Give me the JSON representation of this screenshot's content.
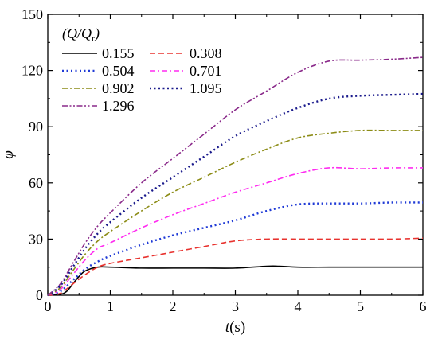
{
  "chart_data": {
    "type": "line",
    "xlabel": "t(s)",
    "ylabel": "φ",
    "xlim": [
      0,
      6
    ],
    "ylim": [
      0,
      150
    ],
    "xticks": [
      0,
      1,
      2,
      3,
      4,
      5,
      6
    ],
    "yticks": [
      0,
      30,
      60,
      90,
      120,
      150
    ],
    "grid": false,
    "legend_title": "(Q/Q_r)",
    "legend_placement": "top-left",
    "series": [
      {
        "name": "0.155",
        "color": "#000000",
        "dash": "solid",
        "x": [
          0,
          0.2,
          0.3,
          0.4,
          0.5,
          0.6,
          0.8,
          1.0,
          1.5,
          2.0,
          2.5,
          3.0,
          3.5,
          3.7,
          4.0,
          4.5,
          5.0,
          5.5,
          6.0
        ],
        "y": [
          0,
          0.5,
          2,
          6,
          10,
          13,
          15,
          15,
          14.5,
          14.5,
          14.5,
          14.5,
          15.5,
          15.5,
          15,
          15,
          15,
          15,
          15
        ]
      },
      {
        "name": "0.308",
        "color": "#e8322e",
        "dash": "dashed",
        "x": [
          0,
          0.2,
          0.4,
          0.6,
          0.8,
          1.0,
          1.5,
          2.0,
          2.5,
          3.0,
          3.5,
          4.0,
          4.5,
          5.0,
          5.5,
          6.0
        ],
        "y": [
          0,
          1,
          6,
          11,
          15,
          17,
          20,
          23,
          26,
          29,
          30,
          30,
          30,
          30,
          30,
          30.5
        ]
      },
      {
        "name": "0.504",
        "color": "#1f3ad6",
        "dash": "dotted",
        "x": [
          0,
          0.2,
          0.4,
          0.6,
          0.8,
          1.0,
          1.5,
          2.0,
          2.5,
          3.0,
          3.5,
          4.0,
          4.5,
          5.0,
          5.5,
          6.0
        ],
        "y": [
          0,
          2,
          8,
          14,
          18,
          21,
          27,
          32,
          36,
          40,
          45,
          48.5,
          49,
          49,
          49.5,
          49.5
        ]
      },
      {
        "name": "0.701",
        "color": "#ff2cf0",
        "dash": "dash-dot",
        "x": [
          0,
          0.2,
          0.4,
          0.6,
          0.8,
          1.0,
          1.5,
          2.0,
          2.5,
          3.0,
          3.5,
          4.0,
          4.5,
          5.0,
          5.5,
          6.0
        ],
        "y": [
          0,
          3,
          11,
          19,
          25,
          28,
          36,
          43,
          49,
          55,
          60,
          65,
          68,
          67.5,
          68,
          68
        ]
      },
      {
        "name": "0.902",
        "color": "#8c8c16",
        "dash": "dash-dot",
        "x": [
          0,
          0.2,
          0.4,
          0.6,
          0.8,
          1.0,
          1.5,
          2.0,
          2.5,
          3.0,
          3.5,
          4.0,
          4.5,
          5.0,
          5.5,
          6.0
        ],
        "y": [
          0,
          4,
          13,
          22,
          29,
          34,
          45,
          55,
          63,
          71,
          78,
          84,
          86.5,
          88,
          88,
          88
        ]
      },
      {
        "name": "1.095",
        "color": "#1a1a8c",
        "dash": "dotted",
        "x": [
          0,
          0.2,
          0.4,
          0.6,
          0.8,
          1.0,
          1.5,
          2.0,
          2.5,
          3.0,
          3.5,
          4.0,
          4.5,
          5.0,
          5.5,
          6.0
        ],
        "y": [
          0,
          5,
          15,
          25,
          33,
          39,
          52,
          63,
          74,
          85,
          93,
          100,
          105,
          106.5,
          107,
          107.5
        ]
      },
      {
        "name": "1.296",
        "color": "#8a2a8a",
        "dash": "dash-dot-dot",
        "x": [
          0,
          0.2,
          0.4,
          0.6,
          0.8,
          1.0,
          1.5,
          2.0,
          2.5,
          3.0,
          3.5,
          4.0,
          4.5,
          5.0,
          5.5,
          6.0
        ],
        "y": [
          0,
          6,
          17,
          28,
          37,
          44,
          60,
          73,
          86,
          99,
          109,
          119,
          125,
          125.5,
          126,
          127
        ]
      }
    ]
  }
}
